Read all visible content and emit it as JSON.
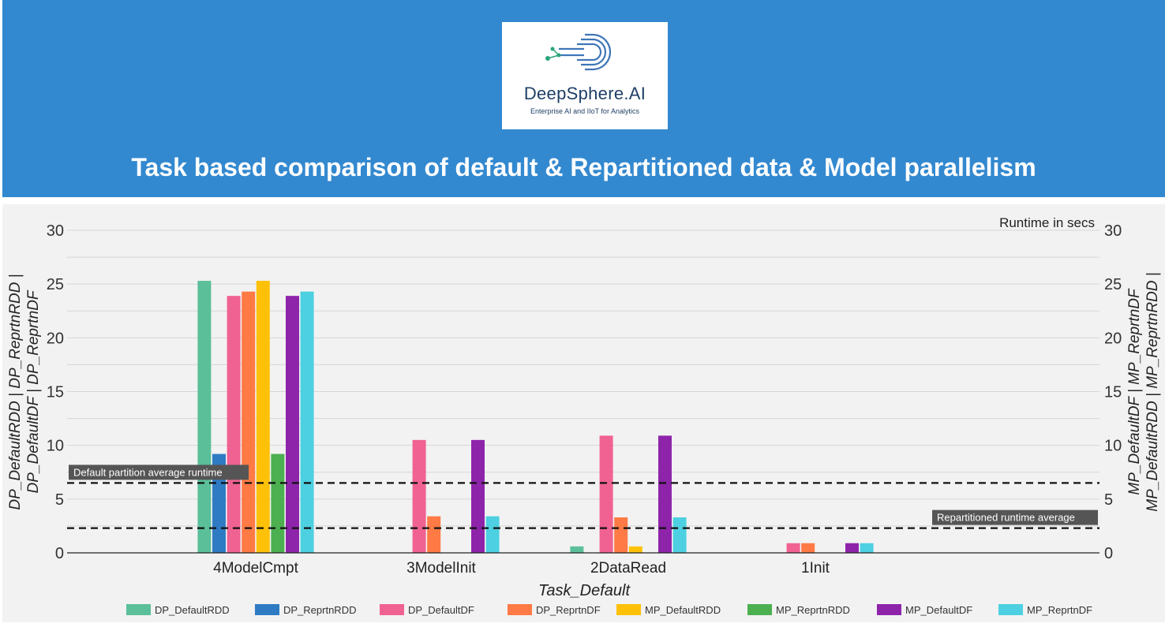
{
  "header": {
    "logo_name": "DeepSphere.AI",
    "logo_tagline": "Enterprise AI and IIoT for Analytics",
    "title": "Task based comparison of default & Repartitioned data & Model parallelism"
  },
  "colors": {
    "header_bg": "#3389d0",
    "panel_bg": "#f2f2f2"
  },
  "chart_data": {
    "type": "bar",
    "title": "",
    "annotation_top_right": "Runtime in secs",
    "xlabel": "Task_Default",
    "ylabel_left": "DP_DefaultRDD | DP_ReprtnRDD | DP_DefaultDF | DP_ReprtnDF",
    "ylabel_right": "MP_DefaultDF | MP_ReprtnDF | MP_DefaultRDD | MP_ReprtnRDD",
    "ylim": [
      0,
      30
    ],
    "yticks": [
      0,
      5,
      10,
      15,
      20,
      25,
      30
    ],
    "grid": true,
    "legend_position": "bottom",
    "categories": [
      "4ModelCmpt",
      "3ModelInit",
      "2DataRead",
      "1Init"
    ],
    "series": [
      {
        "name": "DP_DefaultRDD",
        "color": "#5bbf9a",
        "values": [
          25.3,
          0,
          0.6,
          0
        ]
      },
      {
        "name": "DP_ReprtnRDD",
        "color": "#2e7bc4",
        "values": [
          9.2,
          0,
          0,
          0
        ]
      },
      {
        "name": "DP_DefaultDF",
        "color": "#f06292",
        "values": [
          23.9,
          10.5,
          10.9,
          0.9
        ]
      },
      {
        "name": "DP_ReprtnDF",
        "color": "#ff7a45",
        "values": [
          24.3,
          3.4,
          3.3,
          0.9
        ]
      },
      {
        "name": "MP_DefaultRDD",
        "color": "#ffc107",
        "values": [
          25.3,
          0,
          0.6,
          0
        ]
      },
      {
        "name": "MP_ReprtnRDD",
        "color": "#4caf50",
        "values": [
          9.2,
          0,
          0,
          0
        ]
      },
      {
        "name": "MP_DefaultDF",
        "color": "#8e24aa",
        "values": [
          23.9,
          10.5,
          10.9,
          0.9
        ]
      },
      {
        "name": "MP_ReprtnDF",
        "color": "#4dd0e1",
        "values": [
          24.3,
          3.4,
          3.3,
          0.9
        ]
      }
    ],
    "reference_lines": [
      {
        "label": "Default partition average runtime",
        "value": 6.5
      },
      {
        "label": "Repartitioned runtime average",
        "value": 2.3
      }
    ]
  }
}
